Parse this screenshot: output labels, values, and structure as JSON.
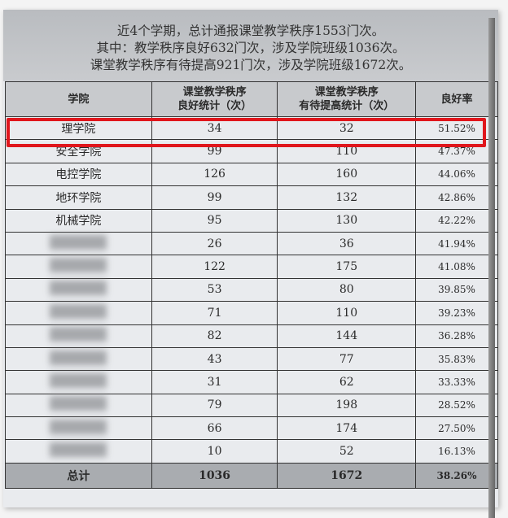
{
  "intro": {
    "line1": "近4个学期，总计通报课堂教学秩序1553门次。",
    "line2": "其中：教学秩序良好632门次，涉及学院班级1036次。",
    "line3": "课堂教学秩序有待提高921门次，涉及学院班级1672次。"
  },
  "table": {
    "headers": [
      "学院",
      "课堂教学秩序\n良好统计（次）",
      "课堂教学秩序\n有待提高统计（次）",
      "良好率"
    ],
    "header_col2_line1": "课堂教学秩序",
    "header_col2_line2": "良好统计（次）",
    "header_col3_line1": "课堂教学秩序",
    "header_col3_line2": "有待提高统计（次）",
    "rows": [
      {
        "name": "理学院",
        "good": "34",
        "improve": "32",
        "rate": "51.52%",
        "highlighted": true
      },
      {
        "name": "安全学院",
        "good": "99",
        "improve": "110",
        "rate": "47.37%"
      },
      {
        "name": "电控学院",
        "good": "126",
        "improve": "160",
        "rate": "44.06%"
      },
      {
        "name": "地环学院",
        "good": "99",
        "improve": "132",
        "rate": "42.86%"
      },
      {
        "name": "机械学院",
        "good": "95",
        "improve": "130",
        "rate": "42.22%"
      },
      {
        "name": "",
        "good": "26",
        "improve": "36",
        "rate": "41.94%"
      },
      {
        "name": "",
        "good": "122",
        "improve": "175",
        "rate": "41.08%"
      },
      {
        "name": "",
        "good": "53",
        "improve": "80",
        "rate": "39.85%"
      },
      {
        "name": "",
        "good": "71",
        "improve": "110",
        "rate": "39.23%"
      },
      {
        "name": "",
        "good": "82",
        "improve": "144",
        "rate": "36.28%"
      },
      {
        "name": "",
        "good": "43",
        "improve": "77",
        "rate": "35.83%"
      },
      {
        "name": "",
        "good": "31",
        "improve": "62",
        "rate": "33.33%"
      },
      {
        "name": "",
        "good": "79",
        "improve": "198",
        "rate": "28.52%"
      },
      {
        "name": "",
        "good": "66",
        "improve": "174",
        "rate": "27.50%"
      },
      {
        "name": "",
        "good": "10",
        "improve": "52",
        "rate": "16.13%"
      }
    ],
    "total": {
      "name": "总计",
      "good": "1036",
      "improve": "1672",
      "rate": "38.26%"
    }
  },
  "colors": {
    "highlight": "#e0161c",
    "header_bg": "#c8cacd",
    "total_bg": "#a9acb0"
  }
}
